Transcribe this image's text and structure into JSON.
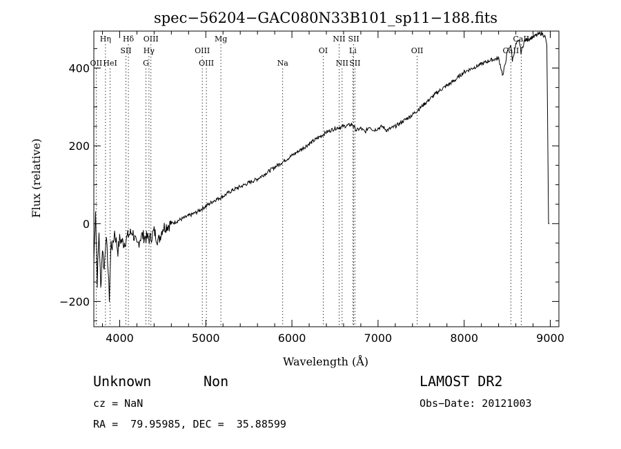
{
  "chart_data": {
    "type": "line",
    "title": "spec−56204−GAC080N33B101_sp11−188.fits",
    "xlabel": "Wavelength (Å)",
    "ylabel": "Flux (relative)",
    "xlim": [
      3700,
      9100
    ],
    "ylim": [
      -265,
      495
    ],
    "x_ticks": [
      4000,
      5000,
      6000,
      7000,
      8000,
      9000
    ],
    "y_ticks": [
      -200,
      0,
      200,
      400
    ],
    "x_tick_labels": [
      "4000",
      "5000",
      "6000",
      "7000",
      "8000",
      "9000"
    ],
    "y_tick_labels": [
      "−200",
      "0",
      "200",
      "400"
    ],
    "grid": false,
    "series": [
      {
        "x": [
          3700,
          3720,
          3740,
          3760,
          3780,
          3800,
          3820,
          3840,
          3860,
          3880,
          3900,
          3920,
          3940,
          3960,
          3980,
          4000,
          4050,
          4100,
          4150,
          4200,
          4250,
          4300,
          4350,
          4400,
          4450,
          4500,
          4600,
          4700,
          4800,
          4900,
          5000,
          5100,
          5200,
          5300,
          5400,
          5500,
          5600,
          5700,
          5800,
          5900,
          6000,
          6100,
          6200,
          6300,
          6400,
          6500,
          6600,
          6700,
          6750,
          6800,
          6850,
          6900,
          6950,
          7000,
          7050,
          7100,
          7200,
          7300,
          7400,
          7500,
          7600,
          7700,
          7800,
          7900,
          8000,
          8100,
          8200,
          8300,
          8400,
          8450,
          8500,
          8540,
          8560,
          8600,
          8640,
          8660,
          8700,
          8800,
          8850,
          8900,
          8940,
          8960,
          8980,
          8990
        ],
        "values": [
          -100,
          40,
          -150,
          -20,
          -170,
          -60,
          -120,
          -30,
          -90,
          -190,
          -50,
          -60,
          -20,
          -45,
          -70,
          -40,
          -50,
          -30,
          -20,
          -60,
          -30,
          -35,
          -40,
          -20,
          -45,
          -10,
          0,
          10,
          20,
          30,
          45,
          60,
          70,
          85,
          95,
          105,
          115,
          130,
          145,
          160,
          175,
          190,
          205,
          220,
          235,
          245,
          250,
          255,
          240,
          245,
          235,
          250,
          240,
          245,
          250,
          240,
          250,
          265,
          280,
          300,
          320,
          340,
          355,
          370,
          390,
          400,
          410,
          420,
          425,
          380,
          440,
          460,
          420,
          460,
          470,
          440,
          470,
          480,
          485,
          490,
          480,
          460,
          0,
          0
        ]
      }
    ],
    "lines": [
      {
        "x": 3727,
        "top": "OII",
        "row": 2
      },
      {
        "x": 3835,
        "top": "Hη",
        "row": 0
      },
      {
        "x": 3889,
        "top": "HeI",
        "row": 2
      },
      {
        "x": 4101,
        "top": "Hδ",
        "row": 0
      },
      {
        "x": 4072,
        "top": "SII",
        "row": 1
      },
      {
        "x": 4340,
        "top": "Hγ",
        "row": 1
      },
      {
        "x": 4363,
        "top": "OIII",
        "row": 0
      },
      {
        "x": 4305,
        "top": "G",
        "row": 2
      },
      {
        "x": 4959,
        "top": "OIII",
        "row": 1
      },
      {
        "x": 5007,
        "top": "OIII",
        "row": 2
      },
      {
        "x": 5175,
        "top": "Mg",
        "row": 0
      },
      {
        "x": 5893,
        "top": "Na",
        "row": 2
      },
      {
        "x": 6363,
        "top": "OI",
        "row": 1
      },
      {
        "x": 6548,
        "top": "NII",
        "row": 0
      },
      {
        "x": 6583,
        "top": "NII",
        "row": 2
      },
      {
        "x": 6707,
        "top": "Li",
        "row": 1
      },
      {
        "x": 6717,
        "top": "SII",
        "row": 0
      },
      {
        "x": 6731,
        "top": "SII",
        "row": 2
      },
      {
        "x": 7454,
        "top": "OII",
        "row": 1
      },
      {
        "x": 8542,
        "top": "CaII",
        "row": 1
      },
      {
        "x": 8662,
        "top": "CaII",
        "row": 0
      }
    ]
  },
  "info": {
    "class": "Unknown",
    "subclass": "Non",
    "survey": "LAMOST DR2",
    "cz": "cz = NaN",
    "obs_date": "Obs−Date: 20121003",
    "coords": "RA =  79.95985, DEC =  35.88599"
  }
}
